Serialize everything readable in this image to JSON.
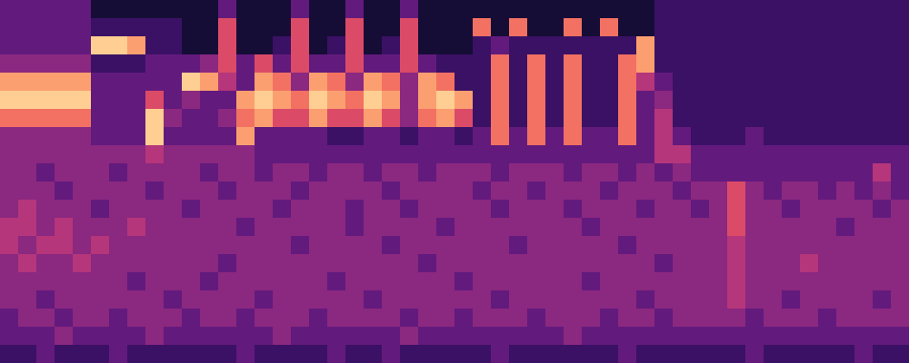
{
  "chart_data": {
    "type": "heatmap",
    "xlim": [
      0,
      50
    ],
    "ylim": [
      0,
      20
    ],
    "zlim": [
      0,
      10
    ],
    "tick_labels": false,
    "cells": [
      [
        3,
        3,
        3,
        3,
        3,
        1,
        1,
        1,
        1,
        1,
        1,
        1,
        3,
        1,
        1,
        1,
        3,
        1,
        1,
        3,
        1,
        1,
        3,
        1,
        1,
        1,
        1,
        1,
        1,
        1,
        1,
        1,
        1,
        1,
        1,
        1,
        2,
        2,
        2,
        2,
        2,
        2,
        2,
        2,
        2,
        2,
        2,
        2,
        2,
        2
      ],
      [
        3,
        3,
        3,
        3,
        3,
        2,
        2,
        2,
        2,
        2,
        1,
        1,
        6,
        1,
        1,
        1,
        6,
        1,
        1,
        6,
        1,
        1,
        6,
        1,
        1,
        1,
        7,
        1,
        7,
        1,
        1,
        7,
        1,
        7,
        1,
        1,
        2,
        2,
        2,
        2,
        2,
        2,
        2,
        2,
        2,
        2,
        2,
        2,
        2,
        2
      ],
      [
        3,
        3,
        3,
        3,
        3,
        9,
        9,
        8,
        2,
        2,
        1,
        1,
        6,
        1,
        1,
        2,
        6,
        1,
        2,
        6,
        1,
        2,
        6,
        1,
        1,
        1,
        2,
        3,
        2,
        2,
        2,
        2,
        2,
        2,
        2,
        8,
        2,
        2,
        2,
        2,
        2,
        2,
        2,
        2,
        2,
        2,
        2,
        2,
        2,
        2
      ],
      [
        4,
        4,
        4,
        4,
        4,
        2,
        2,
        2,
        3,
        3,
        3,
        4,
        6,
        3,
        6,
        3,
        6,
        3,
        3,
        6,
        3,
        3,
        6,
        3,
        2,
        2,
        2,
        7,
        2,
        7,
        2,
        7,
        2,
        2,
        7,
        8,
        2,
        2,
        2,
        2,
        2,
        2,
        2,
        2,
        2,
        2,
        2,
        2,
        2,
        2
      ],
      [
        8,
        8,
        8,
        8,
        8,
        3,
        3,
        3,
        3,
        3,
        9,
        8,
        5,
        3,
        8,
        7,
        4,
        8,
        7,
        4,
        8,
        7,
        4,
        8,
        7,
        2,
        2,
        7,
        2,
        7,
        2,
        7,
        2,
        2,
        7,
        5,
        3,
        2,
        2,
        2,
        2,
        2,
        2,
        2,
        2,
        2,
        2,
        2,
        2,
        2
      ],
      [
        9,
        9,
        9,
        9,
        9,
        3,
        3,
        3,
        6,
        3,
        4,
        3,
        3,
        8,
        9,
        8,
        7,
        9,
        8,
        7,
        9,
        8,
        4,
        8,
        9,
        8,
        2,
        7,
        2,
        7,
        2,
        7,
        2,
        2,
        7,
        3,
        4,
        2,
        2,
        2,
        2,
        2,
        2,
        2,
        2,
        2,
        2,
        2,
        2,
        2
      ],
      [
        7,
        7,
        7,
        7,
        7,
        3,
        3,
        3,
        9,
        4,
        3,
        3,
        4,
        7,
        8,
        6,
        6,
        8,
        6,
        6,
        8,
        6,
        4,
        7,
        8,
        6,
        2,
        7,
        2,
        7,
        2,
        7,
        2,
        2,
        7,
        3,
        5,
        2,
        2,
        2,
        2,
        2,
        2,
        2,
        2,
        2,
        2,
        2,
        2,
        2
      ],
      [
        4,
        4,
        4,
        4,
        4,
        3,
        3,
        3,
        9,
        3,
        3,
        3,
        3,
        8,
        3,
        3,
        3,
        3,
        2,
        2,
        3,
        3,
        2,
        3,
        3,
        2,
        3,
        7,
        3,
        7,
        3,
        7,
        3,
        3,
        7,
        3,
        5,
        3,
        2,
        2,
        2,
        3,
        2,
        2,
        2,
        2,
        2,
        2,
        2,
        2
      ],
      [
        4,
        4,
        4,
        4,
        4,
        4,
        4,
        4,
        5,
        4,
        4,
        4,
        4,
        4,
        3,
        3,
        3,
        3,
        3,
        3,
        3,
        3,
        3,
        3,
        3,
        3,
        3,
        3,
        3,
        3,
        3,
        3,
        3,
        3,
        3,
        3,
        5,
        5,
        3,
        3,
        3,
        3,
        3,
        3,
        3,
        3,
        3,
        3,
        3,
        3
      ],
      [
        4,
        4,
        3,
        4,
        4,
        4,
        3,
        4,
        4,
        4,
        4,
        3,
        4,
        4,
        3,
        4,
        4,
        3,
        4,
        4,
        3,
        4,
        4,
        3,
        4,
        4,
        4,
        3,
        4,
        4,
        4,
        3,
        4,
        4,
        3,
        4,
        3,
        4,
        3,
        3,
        3,
        3,
        3,
        3,
        3,
        3,
        3,
        3,
        5,
        3
      ],
      [
        4,
        4,
        4,
        3,
        4,
        4,
        4,
        4,
        3,
        4,
        4,
        4,
        3,
        4,
        4,
        4,
        3,
        4,
        4,
        4,
        4,
        3,
        4,
        4,
        4,
        4,
        3,
        4,
        4,
        3,
        4,
        4,
        4,
        3,
        4,
        4,
        4,
        3,
        4,
        4,
        6,
        4,
        3,
        4,
        4,
        3,
        4,
        3,
        4,
        3
      ],
      [
        4,
        5,
        4,
        4,
        4,
        3,
        4,
        4,
        4,
        4,
        3,
        4,
        4,
        4,
        4,
        3,
        4,
        4,
        4,
        3,
        4,
        4,
        3,
        4,
        4,
        4,
        4,
        3,
        4,
        4,
        4,
        3,
        4,
        4,
        4,
        3,
        4,
        4,
        3,
        4,
        6,
        4,
        4,
        3,
        4,
        4,
        4,
        4,
        3,
        4
      ],
      [
        5,
        5,
        4,
        5,
        4,
        4,
        4,
        5,
        4,
        4,
        4,
        4,
        4,
        3,
        4,
        4,
        4,
        4,
        4,
        3,
        4,
        4,
        4,
        4,
        3,
        4,
        4,
        4,
        4,
        4,
        4,
        4,
        3,
        4,
        4,
        4,
        4,
        4,
        4,
        4,
        6,
        4,
        4,
        4,
        4,
        4,
        3,
        4,
        4,
        4
      ],
      [
        5,
        4,
        5,
        5,
        4,
        5,
        4,
        4,
        4,
        4,
        4,
        4,
        4,
        4,
        4,
        4,
        3,
        4,
        4,
        4,
        4,
        3,
        4,
        4,
        4,
        4,
        4,
        4,
        3,
        4,
        4,
        4,
        4,
        4,
        3,
        4,
        4,
        4,
        4,
        4,
        5,
        4,
        4,
        4,
        4,
        4,
        4,
        4,
        4,
        4
      ],
      [
        4,
        5,
        4,
        4,
        5,
        4,
        4,
        4,
        4,
        4,
        4,
        4,
        3,
        4,
        4,
        4,
        4,
        4,
        4,
        4,
        4,
        4,
        4,
        3,
        4,
        4,
        4,
        4,
        4,
        4,
        4,
        4,
        4,
        4,
        4,
        4,
        3,
        4,
        4,
        4,
        5,
        4,
        4,
        4,
        5,
        4,
        4,
        4,
        4,
        4
      ],
      [
        4,
        4,
        4,
        4,
        4,
        4,
        4,
        3,
        4,
        4,
        4,
        3,
        4,
        4,
        4,
        4,
        4,
        4,
        3,
        4,
        4,
        4,
        4,
        4,
        4,
        3,
        4,
        4,
        4,
        4,
        4,
        4,
        3,
        4,
        4,
        4,
        4,
        4,
        4,
        4,
        5,
        4,
        4,
        4,
        4,
        4,
        4,
        4,
        4,
        4
      ],
      [
        4,
        4,
        3,
        4,
        4,
        4,
        4,
        4,
        4,
        3,
        4,
        4,
        4,
        4,
        3,
        4,
        4,
        4,
        4,
        4,
        3,
        4,
        4,
        4,
        4,
        4,
        4,
        3,
        4,
        4,
        4,
        4,
        4,
        4,
        4,
        3,
        4,
        4,
        4,
        4,
        5,
        4,
        4,
        3,
        4,
        4,
        4,
        4,
        3,
        4
      ],
      [
        3,
        4,
        4,
        3,
        4,
        4,
        3,
        4,
        4,
        4,
        3,
        4,
        4,
        3,
        4,
        4,
        4,
        3,
        4,
        4,
        4,
        4,
        3,
        4,
        4,
        3,
        4,
        4,
        4,
        3,
        4,
        4,
        4,
        3,
        4,
        4,
        3,
        4,
        4,
        4,
        4,
        3,
        4,
        4,
        4,
        3,
        4,
        4,
        4,
        4
      ],
      [
        3,
        3,
        3,
        4,
        3,
        3,
        3,
        3,
        4,
        3,
        3,
        3,
        3,
        3,
        3,
        4,
        3,
        3,
        3,
        3,
        3,
        3,
        4,
        3,
        3,
        3,
        3,
        3,
        3,
        3,
        3,
        4,
        3,
        3,
        3,
        3,
        3,
        3,
        3,
        3,
        3,
        3,
        3,
        3,
        3,
        3,
        3,
        3,
        3,
        3
      ],
      [
        2,
        2,
        3,
        2,
        2,
        2,
        3,
        2,
        2,
        2,
        2,
        2,
        2,
        3,
        2,
        2,
        2,
        2,
        3,
        2,
        2,
        3,
        2,
        2,
        2,
        2,
        2,
        3,
        2,
        2,
        2,
        2,
        2,
        2,
        3,
        2,
        2,
        2,
        2,
        2,
        2,
        3,
        2,
        2,
        2,
        2,
        2,
        3,
        2,
        2
      ]
    ]
  }
}
